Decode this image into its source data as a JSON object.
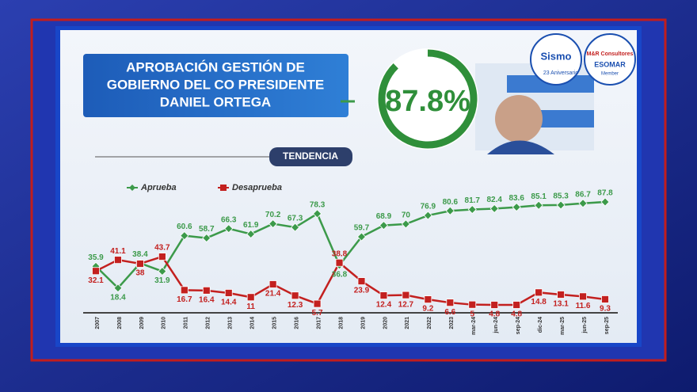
{
  "header": {
    "title_lines": [
      "APROBACIÓN GESTIÓN DE",
      "GOBIERNO DEL CO PRESIDENTE",
      "DANIEL ORTEGA"
    ],
    "section": "TENDENCIA"
  },
  "headline": {
    "value": 87.8,
    "label": "87.8%"
  },
  "logos": [
    {
      "name": "Sismo",
      "caption": "23 Aniversario"
    },
    {
      "name": "M&R Consultores",
      "caption": "ESOMAR",
      "sub": "Member"
    }
  ],
  "chart_data": {
    "type": "line",
    "categories": [
      "2007",
      "2008",
      "2009",
      "2010",
      "2011",
      "2012",
      "2013",
      "2014",
      "2015",
      "2016",
      "2017",
      "2018",
      "2019",
      "2020",
      "2021",
      "2022",
      "2023",
      "mar-24",
      "jun-24",
      "sep-24",
      "dic-24",
      "mar-25",
      "jun-25",
      "sep-25"
    ],
    "series": [
      {
        "name": "Aprueba",
        "color": "#3c9a4a",
        "values": [
          35.9,
          18.4,
          38.4,
          31.9,
          60.6,
          58.7,
          66.3,
          61.9,
          70.2,
          67.3,
          78.3,
          36.8,
          59.7,
          68.9,
          70.0,
          76.9,
          80.6,
          81.7,
          82.4,
          83.6,
          85.1,
          85.3,
          86.7,
          87.8
        ]
      },
      {
        "name": "Desaprueba",
        "color": "#c3201f",
        "values": [
          32.1,
          41.1,
          38.0,
          43.7,
          16.7,
          16.4,
          14.4,
          11.0,
          21.4,
          12.3,
          5.7,
          38.8,
          23.9,
          12.4,
          12.7,
          9.2,
          6.6,
          5.0,
          4.8,
          4.8,
          14.8,
          13.1,
          11.6,
          9.3
        ]
      }
    ]
  }
}
